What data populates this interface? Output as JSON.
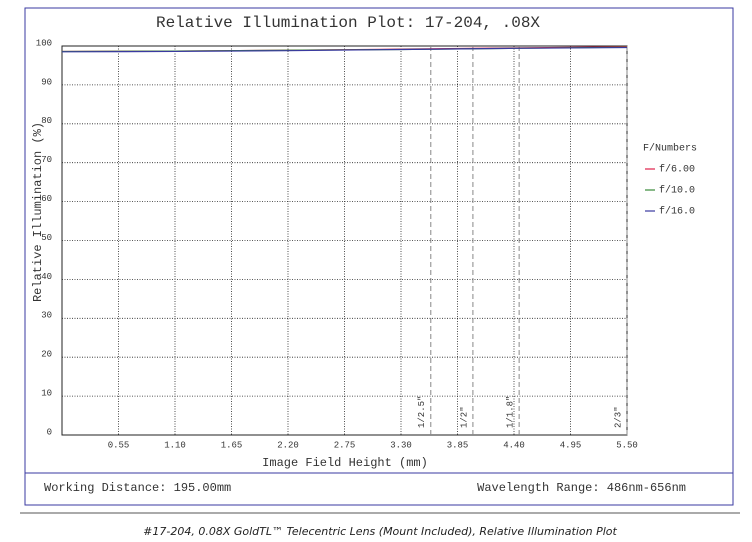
{
  "chart_data": {
    "type": "line",
    "title": "Relative Illumination Plot: 17-204, .08X",
    "xlabel": "Image Field Height (mm)",
    "ylabel": "Relative Illumination (%)",
    "x": [
      0,
      1.1,
      2.2,
      3.3,
      4.4,
      5.5
    ],
    "series": [
      {
        "name": "f/6.00",
        "color": "#e0204a",
        "values": [
          98.6,
          98.7,
          98.9,
          99.2,
          99.5,
          99.8
        ]
      },
      {
        "name": "f/10.0",
        "color": "#3a8a3a",
        "values": [
          98.6,
          98.7,
          98.9,
          99.1,
          99.4,
          99.7
        ]
      },
      {
        "name": "f/16.0",
        "color": "#3a3aa0",
        "values": [
          98.5,
          98.6,
          98.8,
          99.1,
          99.4,
          99.6
        ]
      }
    ],
    "legend_title": "F/Numbers",
    "xlim": [
      0,
      5.5
    ],
    "ylim": [
      0,
      100
    ],
    "xticks": [
      0.55,
      {
        "value": 1.1,
        "label": "1.10"
      },
      1.65,
      {
        "value": 2.2,
        "label": "2.20"
      },
      2.75,
      {
        "value": 3.3,
        "label": "3.30"
      },
      3.85,
      {
        "value": 4.4,
        "label": "4.40"
      },
      4.95,
      {
        "value": 5.5,
        "label": "5.50"
      }
    ],
    "yticks": [
      0,
      10,
      20,
      30,
      40,
      50,
      60,
      70,
      80,
      90,
      100
    ],
    "grid": true,
    "markers": [
      {
        "value": 3.59,
        "label": "1/2.5\""
      },
      {
        "value": 4.0,
        "label": "1/2\""
      },
      {
        "value": 4.45,
        "label": "1/1.8\""
      },
      {
        "value": 5.5,
        "label": "2/3\""
      }
    ]
  },
  "footer": {
    "left": "Working Distance: 195.00mm",
    "right": "Wavelength Range: 486nm-656nm"
  },
  "caption": "#17-204, 0.08X GoldTL™ Telecentric Lens (Mount Included), Relative Illumination Plot"
}
